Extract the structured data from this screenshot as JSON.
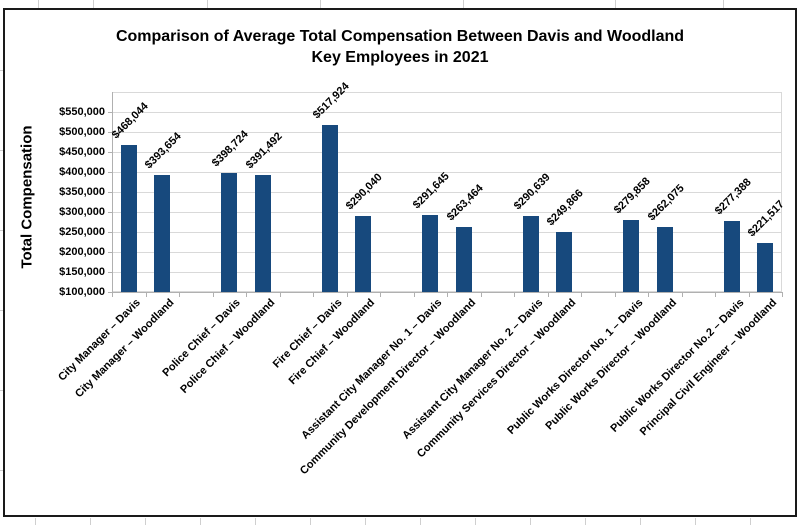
{
  "chart_data": {
    "type": "bar",
    "title_line1": "Comparison of Average Total Compensation Between Davis and Woodland",
    "title_line2": "Key Employees in 2021",
    "ylabel": "Total Compensation",
    "xlabel": "",
    "ylim": [
      100000,
      600000
    ],
    "ytick_interval": 50000,
    "ytick_labels": [
      "$100,000",
      "$150,000",
      "$200,000",
      "$250,000",
      "$300,000",
      "$350,000",
      "$400,000",
      "$450,000",
      "$500,000",
      "$550,000"
    ],
    "grid": "horizontal",
    "legend": "none",
    "bar_color": "#17497D",
    "categories": [
      "City Manager – Davis",
      "City Manager – Woodland",
      "Police Chief – Davis",
      "Police Chief – Woodland",
      "Fire Chief – Davis",
      "Fire Chief – Woodland",
      "Assistant City Manager No. 1 – Davis",
      "Community Development Director – Woodland",
      "Assistant City Manager No. 2 – Davis",
      "Community Services Director – Woodland",
      "Public Works Director No. 1 – Davis",
      "Public Works Director – Woodland",
      "Public Works Director No.2 – Davis",
      "Principal Civil Engineer – Woodland"
    ],
    "values": [
      468044,
      393654,
      398724,
      391492,
      517924,
      290040,
      291645,
      263464,
      290639,
      249866,
      279858,
      262075,
      277388,
      221517
    ],
    "data_labels": [
      "$468,044",
      "$393,654",
      "$398,724",
      "$391,492",
      "$517,924",
      "$290,040",
      "$291,645",
      "$263,464",
      "$290,639",
      "$249,866",
      "$279,858",
      "$262,075",
      "$277,388",
      "$221,517"
    ],
    "layout_hint": "bars grouped in pairs (Davis vs Woodland) with a blank slot between pairs"
  },
  "colors": {
    "bar": "#17497D",
    "gridline": "#d9d9d9",
    "axis": "#b0b0b0",
    "chart_border": "#1a1a1a",
    "sheet_gridline": "#cfcfcf"
  }
}
